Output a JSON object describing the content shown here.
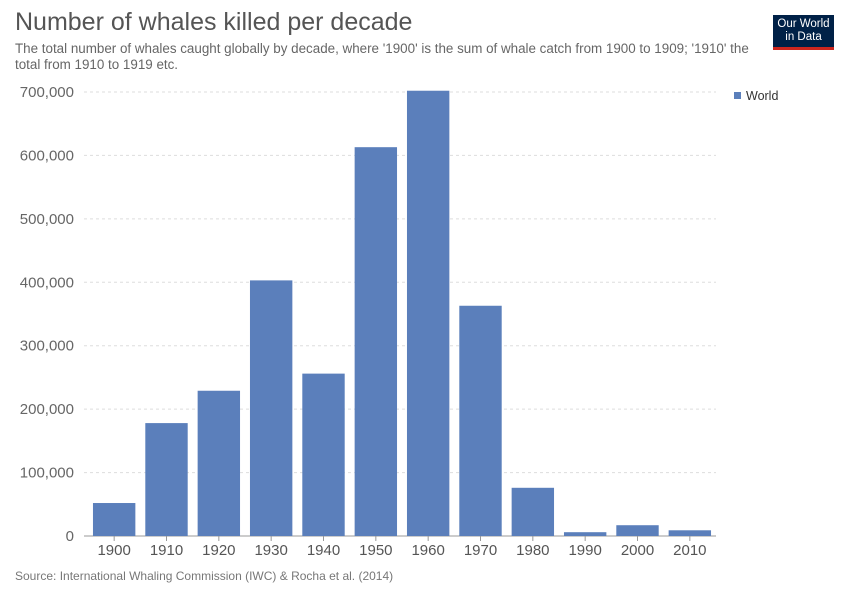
{
  "header": {
    "title": "Number of whales killed per decade",
    "subtitle": "The total number of whales caught globally by decade, where '1900' is the sum of whale catch from 1900 to 1909; '1910' the total from 1910 to 1919 etc.",
    "logo_line1": "Our World",
    "logo_line2": "in Data"
  },
  "footer": {
    "source": "Source: International Whaling Commission (IWC) & Rocha et al. (2014)"
  },
  "colors": {
    "bar": "#5b7fbb",
    "grid": "#dddddd",
    "logo_bg": "#002147",
    "logo_accent": "#ce261e"
  },
  "chart_data": {
    "type": "bar",
    "title": "Number of whales killed per decade",
    "xlabel": "",
    "ylabel": "",
    "categories": [
      "1900",
      "1910",
      "1920",
      "1930",
      "1940",
      "1950",
      "1960",
      "1970",
      "1980",
      "1990",
      "2000",
      "2010"
    ],
    "series": [
      {
        "name": "World",
        "values": [
          52000,
          178000,
          229000,
          403000,
          256000,
          613000,
          702000,
          363000,
          76000,
          6000,
          17000,
          9000
        ]
      }
    ],
    "ylim": [
      0,
      700000
    ],
    "yticks": [
      0,
      100000,
      200000,
      300000,
      400000,
      500000,
      600000,
      700000
    ],
    "ytick_labels": [
      "0",
      "100,000",
      "200,000",
      "300,000",
      "400,000",
      "500,000",
      "600,000",
      "700,000"
    ],
    "grid": true,
    "legend": [
      "World"
    ],
    "legend_position": "top-right"
  }
}
